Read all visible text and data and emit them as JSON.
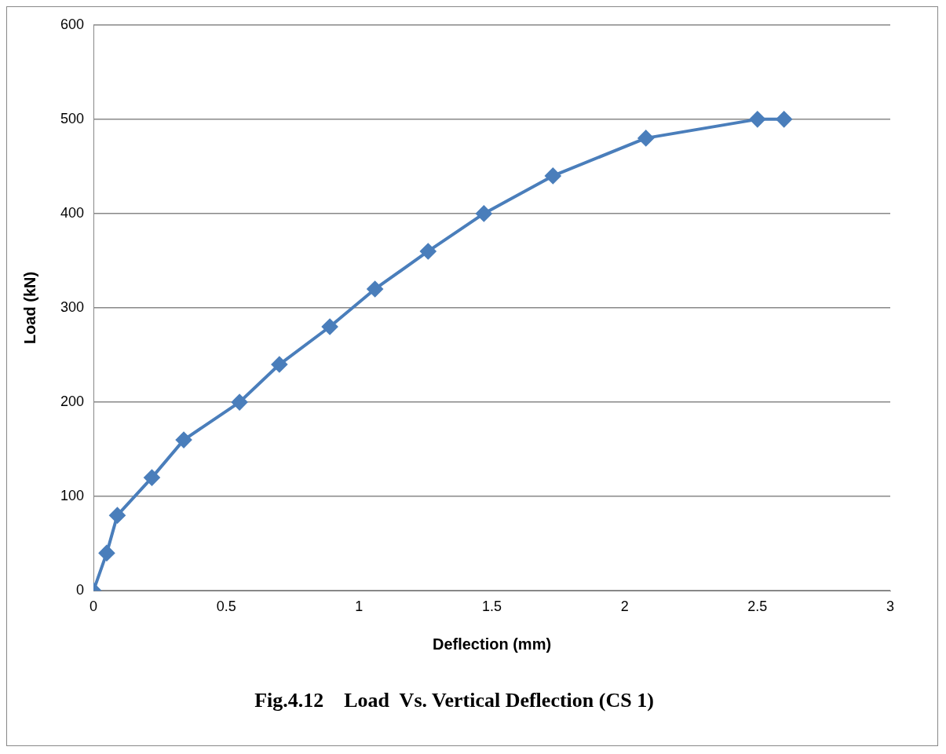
{
  "chart_data": {
    "type": "line",
    "title": "Fig.4.12    Load  Vs. Vertical Deflection (CS 1)",
    "xlabel": "Deflection (mm)",
    "ylabel": "Load (kN)",
    "x": [
      0,
      0.05,
      0.09,
      0.22,
      0.34,
      0.55,
      0.7,
      0.89,
      1.06,
      1.26,
      1.47,
      1.73,
      2.08,
      2.5,
      2.6
    ],
    "series": [
      {
        "color": "#4a7ebb",
        "values": [
          0,
          40,
          80,
          120,
          160,
          200,
          240,
          280,
          320,
          360,
          400,
          440,
          480,
          500,
          500
        ]
      }
    ],
    "xlim": [
      0,
      3
    ],
    "xticks": [
      0,
      0.5,
      1,
      1.5,
      2,
      2.5,
      3
    ],
    "ylim": [
      0,
      600
    ],
    "yticks": [
      0,
      100,
      200,
      300,
      400,
      500,
      600
    ],
    "grid": "y",
    "legend": false,
    "marker": "diamond",
    "line_style": "solid"
  }
}
